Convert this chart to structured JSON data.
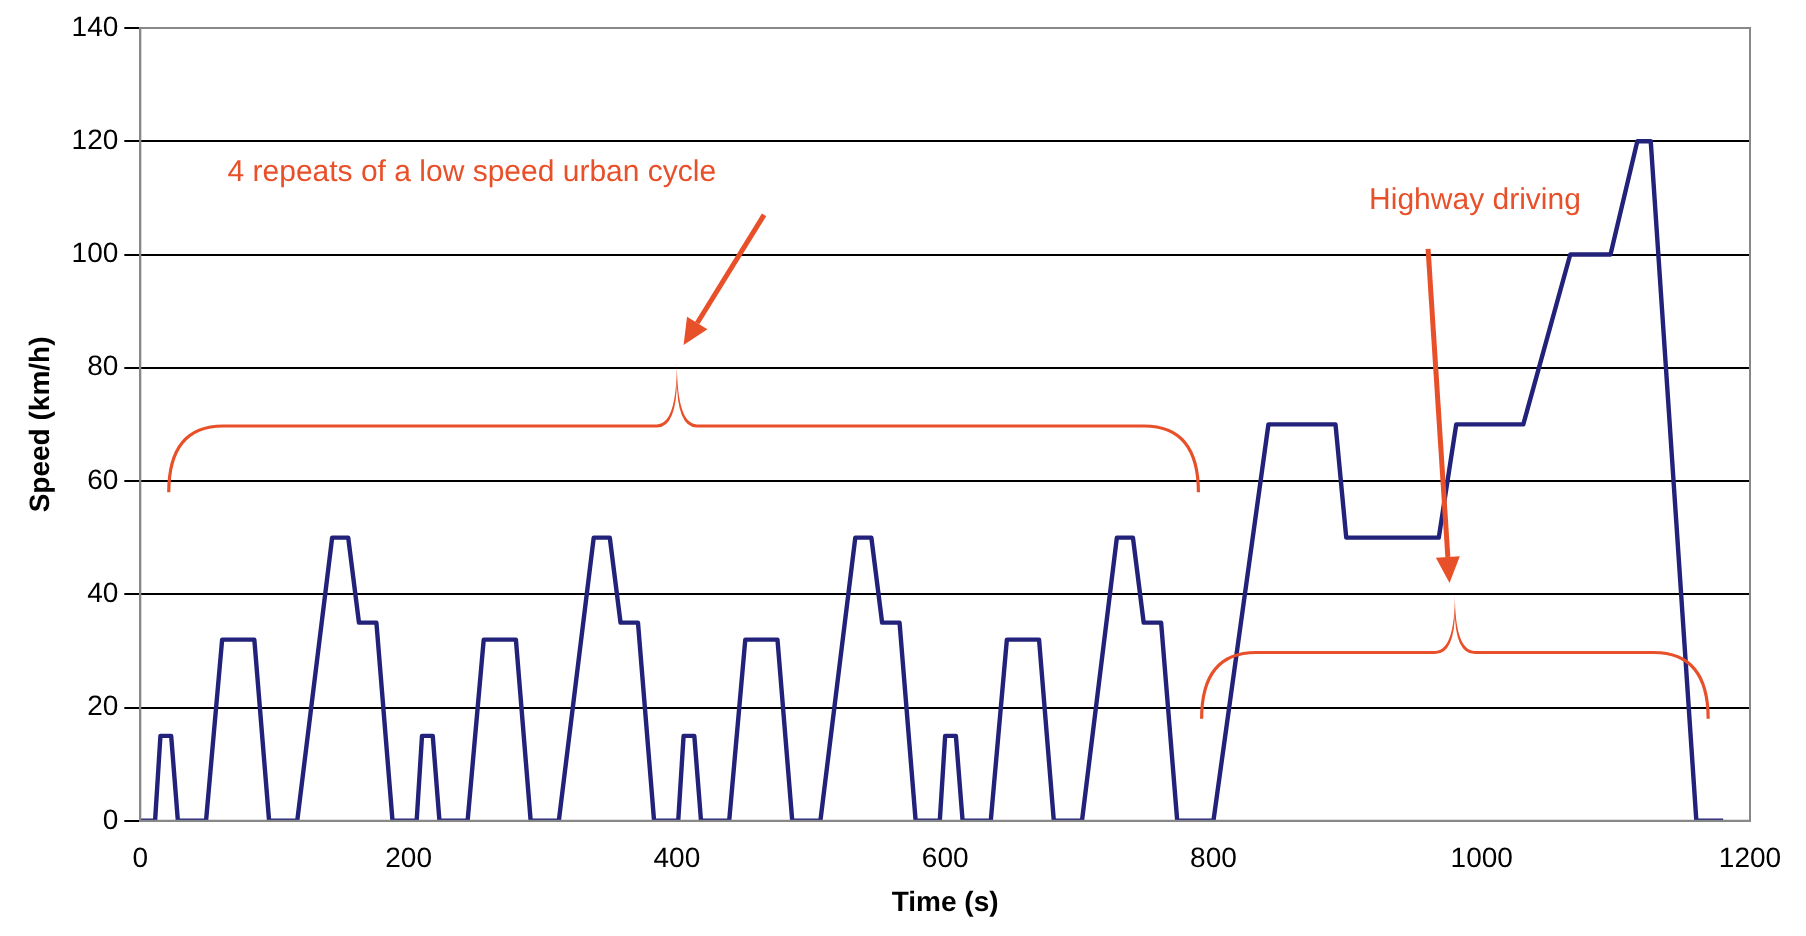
{
  "chart_data": {
    "type": "line",
    "xlabel": "Time (s)",
    "ylabel": "Speed (km/h)",
    "x": [
      0,
      11,
      15,
      23,
      28,
      49,
      61,
      85,
      96,
      117,
      143,
      155,
      163,
      176,
      188,
      195,
      206,
      210,
      218,
      223,
      244,
      256,
      280,
      291,
      312,
      338,
      350,
      358,
      371,
      383,
      390,
      401,
      405,
      413,
      418,
      439,
      451,
      475,
      486,
      507,
      533,
      545,
      553,
      566,
      578,
      585,
      596,
      600,
      608,
      613,
      634,
      646,
      670,
      681,
      702,
      728,
      740,
      748,
      761,
      773,
      800,
      841,
      891,
      899,
      968,
      981,
      1031,
      1066,
      1096,
      1116,
      1126,
      1160,
      1180
    ],
    "series": [
      {
        "color": "#22227a",
        "values": [
          0,
          0,
          15,
          15,
          0,
          0,
          32,
          32,
          0,
          0,
          50,
          50,
          35,
          35,
          0,
          0,
          0,
          15,
          15,
          0,
          0,
          32,
          32,
          0,
          0,
          50,
          50,
          35,
          35,
          0,
          0,
          0,
          15,
          15,
          0,
          0,
          32,
          32,
          0,
          0,
          50,
          50,
          35,
          35,
          0,
          0,
          0,
          15,
          15,
          0,
          0,
          32,
          32,
          0,
          0,
          50,
          50,
          35,
          35,
          0,
          0,
          70,
          70,
          50,
          50,
          70,
          70,
          100,
          100,
          120,
          120,
          0,
          0
        ]
      }
    ],
    "xlim": [
      0,
      1200
    ],
    "xticks": [
      0,
      200,
      400,
      600,
      800,
      1000,
      1200
    ],
    "ylim": [
      0,
      140
    ],
    "yticks": [
      0,
      20,
      40,
      60,
      80,
      100,
      120,
      140
    ],
    "grid": "y",
    "legend": false,
    "marker": "none",
    "line_style": "solid",
    "annotations": [
      "4 repeats of a low  speed urban cycle",
      "Highway driving"
    ]
  }
}
